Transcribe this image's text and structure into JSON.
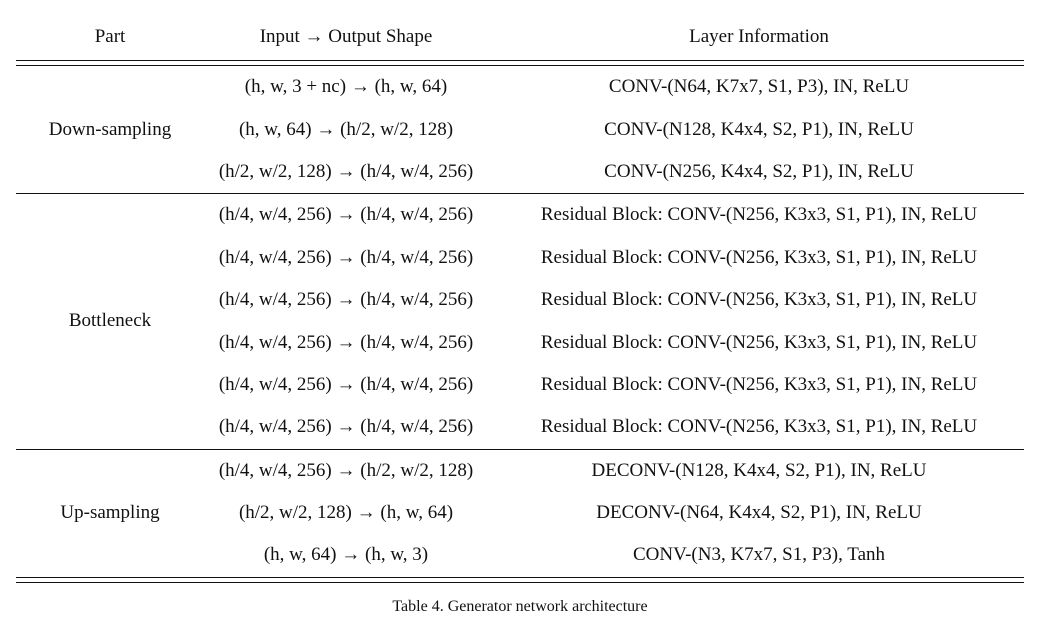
{
  "table": {
    "headers": {
      "part": "Part",
      "shape": "Input → Output Shape",
      "info": "Layer Information"
    },
    "sections": [
      {
        "part": "Down-sampling",
        "rows": [
          {
            "shape": "(h, w, 3 + nc) → (h, w, 64)",
            "info": "CONV-(N64, K7x7, S1, P3), IN, ReLU"
          },
          {
            "shape": "(h, w, 64) → (h/2, w/2, 128)",
            "info": "CONV-(N128, K4x4, S2, P1), IN, ReLU"
          },
          {
            "shape": "(h/2, w/2, 128) → (h/4, w/4, 256)",
            "info": "CONV-(N256, K4x4, S2, P1), IN, ReLU"
          }
        ]
      },
      {
        "part": "Bottleneck",
        "rows": [
          {
            "shape": "(h/4, w/4, 256) → (h/4, w/4, 256)",
            "info": "Residual Block: CONV-(N256, K3x3, S1, P1), IN, ReLU"
          },
          {
            "shape": "(h/4, w/4, 256) → (h/4, w/4, 256)",
            "info": "Residual Block: CONV-(N256, K3x3, S1, P1), IN, ReLU"
          },
          {
            "shape": "(h/4, w/4, 256) → (h/4, w/4, 256)",
            "info": "Residual Block: CONV-(N256, K3x3, S1, P1), IN, ReLU"
          },
          {
            "shape": "(h/4, w/4, 256) → (h/4, w/4, 256)",
            "info": "Residual Block: CONV-(N256, K3x3, S1, P1), IN, ReLU"
          },
          {
            "shape": "(h/4, w/4, 256) → (h/4, w/4, 256)",
            "info": "Residual Block: CONV-(N256, K3x3, S1, P1), IN, ReLU"
          },
          {
            "shape": "(h/4, w/4, 256) → (h/4, w/4, 256)",
            "info": "Residual Block: CONV-(N256, K3x3, S1, P1), IN, ReLU"
          }
        ]
      },
      {
        "part": "Up-sampling",
        "rows": [
          {
            "shape": "(h/4, w/4, 256) → (h/2, w/2, 128)",
            "info": "DECONV-(N128, K4x4, S2, P1), IN, ReLU"
          },
          {
            "shape": "(h/2, w/2, 128) → (h, w, 64)",
            "info": "DECONV-(N64, K4x4, S2, P1), IN, ReLU"
          },
          {
            "shape": "(h, w, 64) → (h, w, 3)",
            "info": "CONV-(N3, K7x7, S1, P3), Tanh"
          }
        ]
      }
    ]
  },
  "caption": "Table 4. Generator network architecture"
}
